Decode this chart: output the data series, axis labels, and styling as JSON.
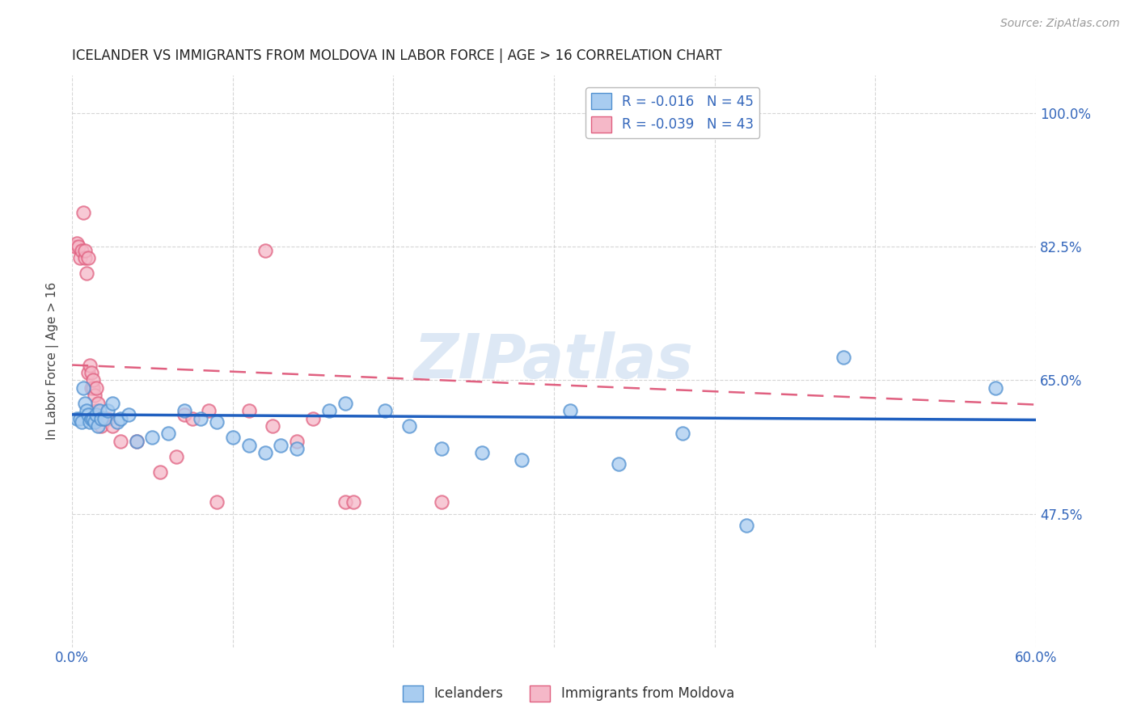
{
  "title": "ICELANDER VS IMMIGRANTS FROM MOLDOVA IN LABOR FORCE | AGE > 16 CORRELATION CHART",
  "source": "Source: ZipAtlas.com",
  "ylabel": "In Labor Force | Age > 16",
  "watermark": "ZIPatlas",
  "r_icelander": -0.016,
  "n_icelander": 45,
  "r_moldova": -0.039,
  "n_moldova": 43,
  "legend_icelander": "Icelanders",
  "legend_moldova": "Immigrants from Moldova",
  "icelander_color": "#a8ccf0",
  "moldova_color": "#f5b8c8",
  "icelander_edge_color": "#5090d0",
  "moldova_edge_color": "#e06080",
  "icelander_line_color": "#2060C0",
  "moldova_line_color": "#e06080",
  "xlim": [
    0.0,
    0.6
  ],
  "ylim": [
    0.3,
    1.05
  ],
  "yticks": [
    0.475,
    0.65,
    0.825,
    1.0
  ],
  "ytick_labels": [
    "47.5%",
    "65.0%",
    "82.5%",
    "100.0%"
  ],
  "xticks": [
    0.0,
    0.1,
    0.2,
    0.3,
    0.4,
    0.5,
    0.6
  ],
  "xtick_labels": [
    "0.0%",
    "",
    "",
    "",
    "",
    "",
    "60.0%"
  ],
  "background_color": "#ffffff",
  "grid_color": "#cccccc",
  "ice_line_y0": 0.605,
  "ice_line_y1": 0.598,
  "mol_line_y0": 0.67,
  "mol_line_y1": 0.618,
  "icelander_x": [
    0.003,
    0.005,
    0.006,
    0.007,
    0.008,
    0.009,
    0.01,
    0.011,
    0.012,
    0.013,
    0.014,
    0.015,
    0.016,
    0.017,
    0.018,
    0.02,
    0.022,
    0.025,
    0.028,
    0.03,
    0.035,
    0.04,
    0.05,
    0.06,
    0.07,
    0.08,
    0.09,
    0.1,
    0.11,
    0.12,
    0.13,
    0.14,
    0.16,
    0.17,
    0.195,
    0.21,
    0.23,
    0.255,
    0.28,
    0.31,
    0.34,
    0.38,
    0.42,
    0.48,
    0.575
  ],
  "icelander_y": [
    0.6,
    0.6,
    0.595,
    0.64,
    0.62,
    0.61,
    0.605,
    0.595,
    0.6,
    0.6,
    0.595,
    0.605,
    0.59,
    0.61,
    0.6,
    0.6,
    0.61,
    0.62,
    0.595,
    0.6,
    0.605,
    0.57,
    0.575,
    0.58,
    0.61,
    0.6,
    0.595,
    0.575,
    0.565,
    0.555,
    0.565,
    0.56,
    0.61,
    0.62,
    0.61,
    0.59,
    0.56,
    0.555,
    0.545,
    0.61,
    0.54,
    0.58,
    0.46,
    0.68,
    0.64
  ],
  "moldova_x": [
    0.002,
    0.003,
    0.004,
    0.005,
    0.006,
    0.007,
    0.008,
    0.008,
    0.009,
    0.01,
    0.01,
    0.011,
    0.012,
    0.012,
    0.013,
    0.013,
    0.014,
    0.015,
    0.015,
    0.016,
    0.016,
    0.017,
    0.018,
    0.018,
    0.02,
    0.022,
    0.025,
    0.03,
    0.04,
    0.055,
    0.065,
    0.07,
    0.075,
    0.085,
    0.09,
    0.11,
    0.12,
    0.125,
    0.14,
    0.15,
    0.17,
    0.175,
    0.23
  ],
  "moldova_y": [
    0.825,
    0.83,
    0.825,
    0.81,
    0.82,
    0.87,
    0.81,
    0.82,
    0.79,
    0.81,
    0.66,
    0.67,
    0.66,
    0.64,
    0.64,
    0.65,
    0.63,
    0.64,
    0.61,
    0.62,
    0.6,
    0.6,
    0.6,
    0.59,
    0.6,
    0.6,
    0.59,
    0.57,
    0.57,
    0.53,
    0.55,
    0.605,
    0.6,
    0.61,
    0.49,
    0.61,
    0.82,
    0.59,
    0.57,
    0.6,
    0.49,
    0.49,
    0.49
  ]
}
